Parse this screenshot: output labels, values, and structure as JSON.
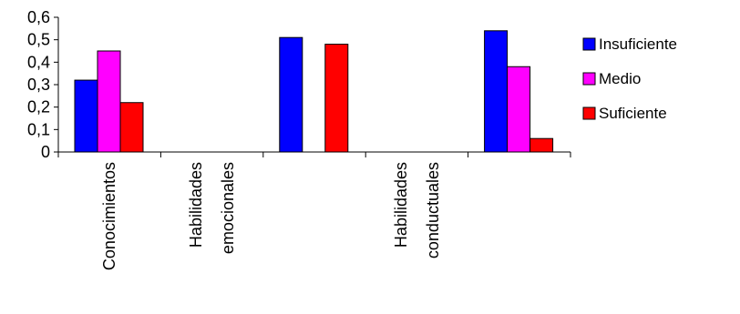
{
  "chart_data": {
    "type": "bar",
    "categories": [
      [
        "Conocimientos"
      ],
      [
        "Habilidades",
        "emocionales"
      ],
      [],
      [
        "Habilidades",
        "conductuales"
      ],
      []
    ],
    "series": [
      {
        "name": "Insuficiente",
        "color": "#0000FF",
        "values": [
          0.32,
          null,
          0.51,
          null,
          0.54
        ]
      },
      {
        "name": "Medio",
        "color": "#FF00FF",
        "values": [
          0.45,
          null,
          null,
          null,
          0.38
        ]
      },
      {
        "name": "Suficiente",
        "color": "#FF0000",
        "values": [
          0.22,
          null,
          0.48,
          null,
          0.06
        ]
      }
    ],
    "ylim": [
      0,
      0.6
    ],
    "yticks": [
      "0",
      "0,1",
      "0,2",
      "0,3",
      "0,4",
      "0,5",
      "0,6"
    ],
    "title": "",
    "xlabel": "",
    "ylabel": "",
    "grid": false,
    "legend_position": "right"
  }
}
